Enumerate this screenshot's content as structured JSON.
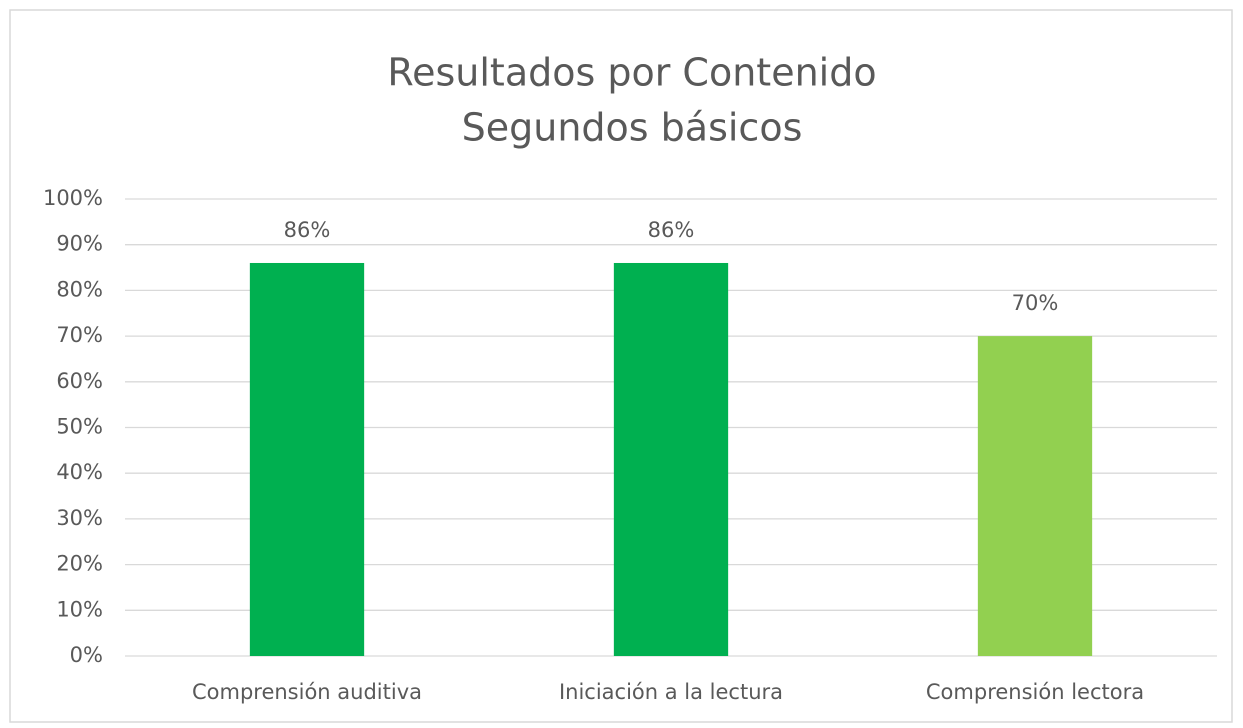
{
  "chart_data": {
    "type": "bar",
    "title": [
      "Resultados por Contenido",
      "Segundos básicos"
    ],
    "categories": [
      "Comprensión auditiva",
      "Iniciación a la lectura",
      "Comprensión lectora"
    ],
    "values": [
      86,
      86,
      70
    ],
    "value_labels": [
      "86%",
      "86%",
      "70%"
    ],
    "colors": [
      "#00b050",
      "#00b050",
      "#92d050"
    ],
    "ylim": [
      0,
      100
    ],
    "yticks": [
      {
        "value": 0,
        "label": "0%"
      },
      {
        "value": 10,
        "label": "10%"
      },
      {
        "value": 20,
        "label": "20%"
      },
      {
        "value": 30,
        "label": "30%"
      },
      {
        "value": 40,
        "label": "40%"
      },
      {
        "value": 50,
        "label": "50%"
      },
      {
        "value": 60,
        "label": "60%"
      },
      {
        "value": 70,
        "label": "70%"
      },
      {
        "value": 80,
        "label": "80%"
      },
      {
        "value": 90,
        "label": "90%"
      },
      {
        "value": 100,
        "label": "100%"
      }
    ],
    "grid": true
  }
}
